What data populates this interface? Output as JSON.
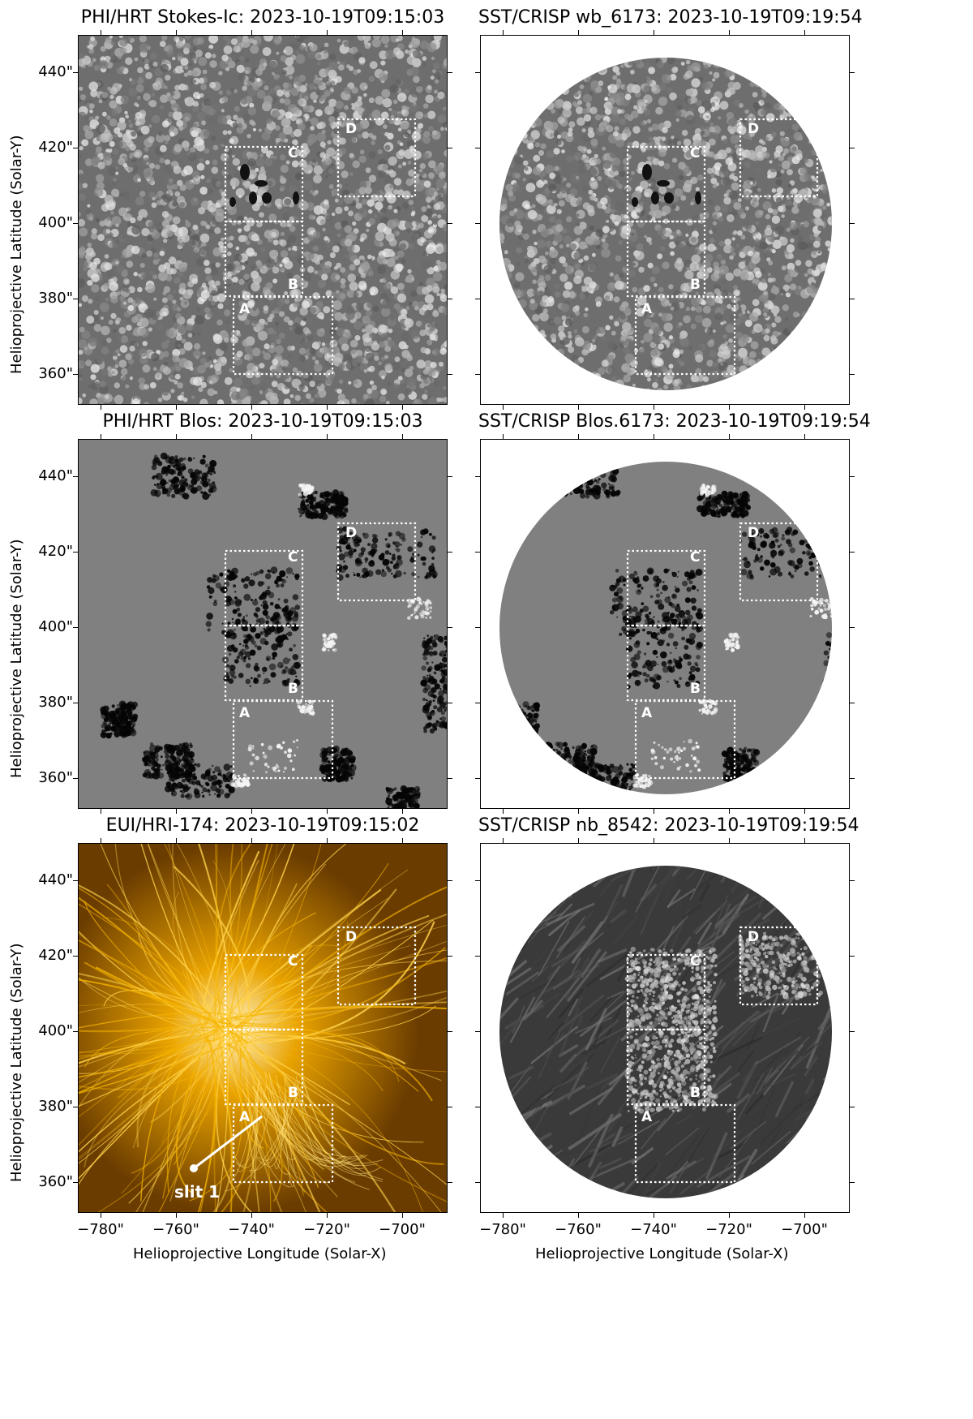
{
  "panels": [
    {
      "id": "p1",
      "title": "PHI/HRT Stokes-Ic: 2023-10-19T09:15:03",
      "style": "granulation",
      "circle": false
    },
    {
      "id": "p2",
      "title": "SST/CRISP wb_6173: 2023-10-19T09:19:54",
      "style": "granulation",
      "circle": true
    },
    {
      "id": "p3",
      "title": "PHI/HRT Blos: 2023-10-19T09:15:03",
      "style": "magnetogram",
      "circle": false
    },
    {
      "id": "p4",
      "title": "SST/CRISP Blos.6173: 2023-10-19T09:19:54",
      "style": "magnetogram",
      "circle": true
    },
    {
      "id": "p5",
      "title": "EUI/HRI-174: 2023-10-19T09:15:02",
      "style": "euv",
      "circle": false
    },
    {
      "id": "p6",
      "title": "SST/CRISP nb_8542: 2023-10-19T09:19:54",
      "style": "chromosphere",
      "circle": true
    }
  ],
  "axes": {
    "y_ticks": [
      "440\"",
      "420\"",
      "400\"",
      "380\"",
      "360\""
    ],
    "x_ticks": [
      "−780\"",
      "−760\"",
      "−740\"",
      "−720\"",
      "−700\""
    ],
    "y_title": "Helioprojective Latitude (Solar-Y)",
    "x_title": "Helioprojective Longitude (Solar-X)"
  },
  "boxes": [
    "A",
    "B",
    "C",
    "D"
  ],
  "slit_label": "slit 1",
  "colors": {
    "euv": "#d99000",
    "frame": "#000000",
    "box": "#ffffff"
  }
}
